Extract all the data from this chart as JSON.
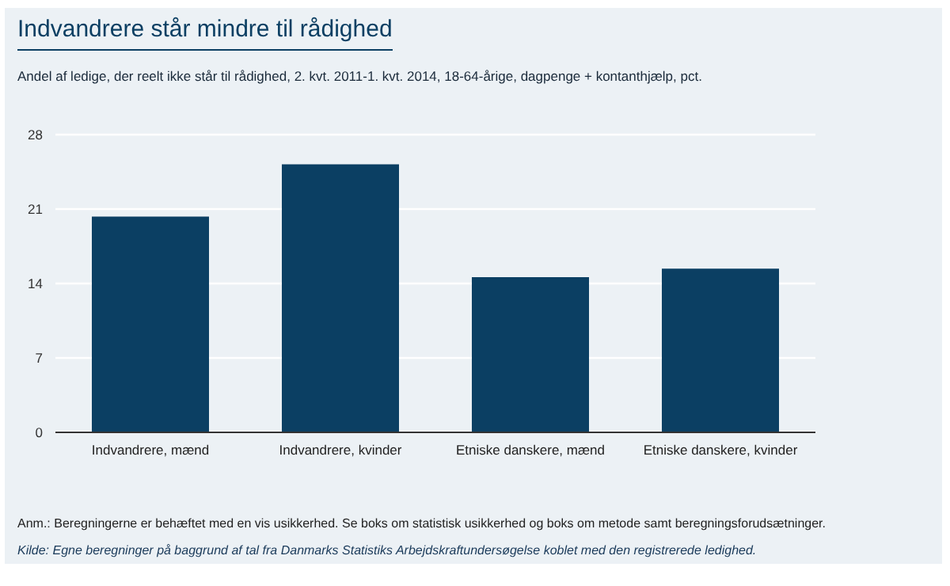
{
  "chart_data": {
    "type": "bar",
    "title": "Indvandrere står mindre til rådighed",
    "subtitle": "Andel af ledige, der reelt ikke står til rådighed, 2. kvt. 2011-1. kvt. 2014, 18-64-årige, dagpenge + kontanthjælp, pct.",
    "categories": [
      "Indvandrere, mænd",
      "Indvandrere, kvinder",
      "Etniske danskere, mænd",
      "Etniske danskere, kvinder"
    ],
    "values": [
      20.3,
      25.2,
      14.6,
      15.4
    ],
    "color": "#0b3f63",
    "ylim": [
      0,
      28
    ],
    "yticks": [
      0,
      7,
      14,
      21,
      28
    ],
    "grid": "y",
    "annotations": [
      "Anm.: Beregningerne er behæftet med en vis usikkerhed. Se boks om statistisk usikkerhed og boks om metode samt beregningsforudsætninger.",
      "Kilde: Egne beregninger på baggrund af tal fra Danmarks Statistiks Arbejdskraftundersøgelse koblet med den registrerede ledighed."
    ]
  }
}
